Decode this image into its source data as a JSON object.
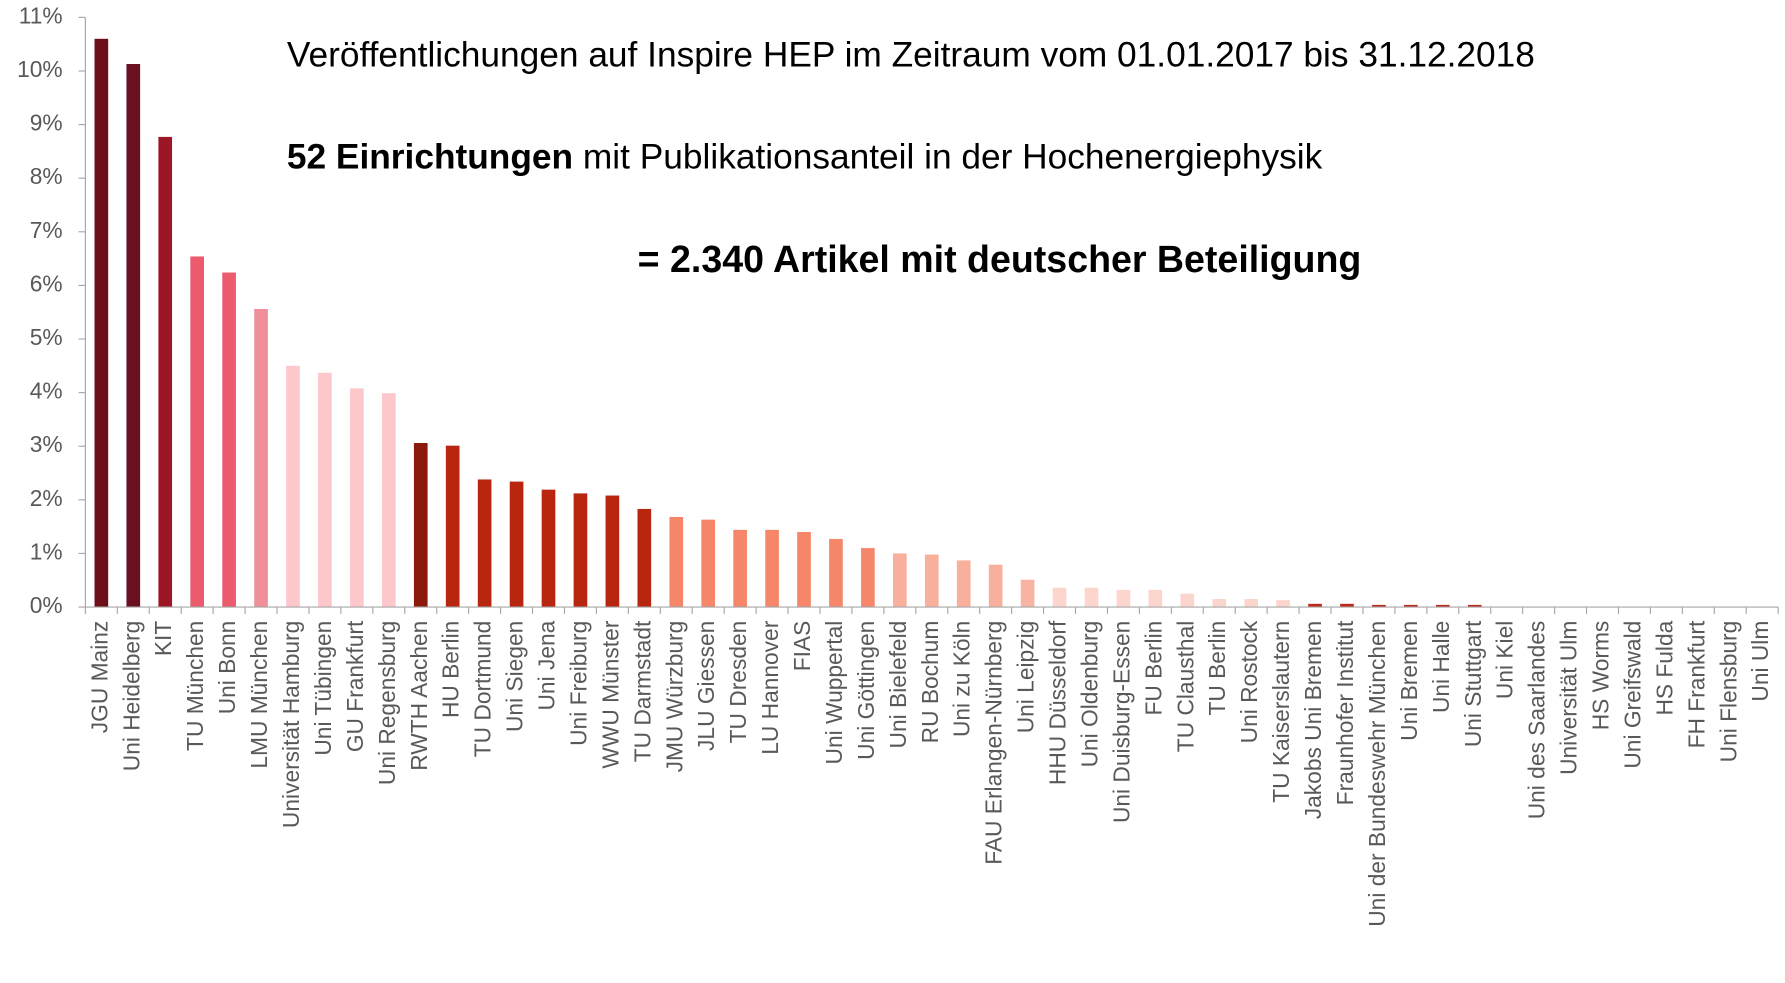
{
  "chart_data": {
    "type": "bar",
    "title": "Veröffentlichungen auf Inspire HEP im Zeitraum vom 01.01.2017 bis 31.12.2018",
    "subtitle_bold": "52 Einrichtungen",
    "subtitle": "mit Publikationsanteil in der Hochenergiephysik",
    "note": "= 2.340 Artikel mit deutscher Beteiligung",
    "categories": [
      "JGU Mainz",
      "Uni Heidelberg",
      "KIT",
      "TU München",
      "Uni Bonn",
      "LMU München",
      "Universität Hamburg",
      "Uni Tübingen",
      "GU Frankfurt",
      "Uni Regensburg",
      "RWTH Aachen",
      "HU Berlin",
      "TU Dortmund",
      "Uni Siegen",
      "Uni Jena",
      "Uni Freiburg",
      "WWU Münster",
      "TU Darmstadt",
      "JMU Würzburg",
      "JLU Giessen",
      "TU Dresden",
      "LU Hannover",
      "FIAS",
      "Uni Wuppertal",
      "Uni Göttingen",
      "Uni Bielefeld",
      "RU Bochum",
      "Uni zu Köln",
      "FAU Erlangen-Nürnberg",
      "Uni Leipzig",
      "HHU Düsseldorf",
      "Uni Oldenburg",
      "Uni Duisburg-Essen",
      "FU Berlin",
      "TU Clausthal",
      "TU Berlin",
      "Uni Rostock",
      "TU Kaiserslautern",
      "Jakobs Uni Bremen",
      "Fraunhofer Institut",
      "Uni der Bundeswehr München",
      "Uni Bremen",
      "Uni Halle",
      "Uni Stuttgart",
      "Uni Kiel",
      "Uni des Saarlandes",
      "Universität Ulm",
      "HS Worms",
      "Uni Greifswald",
      "HS Fulda",
      "FH Frankfurt",
      "Uni Flensburg",
      "Uni Ulm"
    ],
    "values": [
      10.6,
      10.13,
      8.77,
      6.54,
      6.24,
      5.56,
      4.5,
      4.37,
      4.08,
      3.99,
      3.06,
      3.01,
      2.38,
      2.34,
      2.19,
      2.12,
      2.08,
      1.83,
      1.68,
      1.63,
      1.44,
      1.44,
      1.4,
      1.27,
      1.1,
      1.0,
      0.98,
      0.87,
      0.79,
      0.51,
      0.36,
      0.36,
      0.32,
      0.32,
      0.25,
      0.15,
      0.15,
      0.13,
      0.06,
      0.06,
      0.04,
      0.04,
      0.04,
      0.04,
      0,
      0,
      0,
      0,
      0,
      0,
      0,
      0,
      0
    ],
    "colors": [
      "#6e0e1a",
      "#6b1020",
      "#9c1626",
      "#ec5a6e",
      "#ec5a6e",
      "#f08f9a",
      "#fcc8cc",
      "#fcc8cc",
      "#fcc8cc",
      "#fcc8cc",
      "#8b1a0c",
      "#b8260f",
      "#b8260f",
      "#b8260f",
      "#b8260f",
      "#b8260f",
      "#b8260f",
      "#b8260f",
      "#f5866a",
      "#f5866a",
      "#f5866a",
      "#f5866a",
      "#f5866a",
      "#f5866a",
      "#f5866a",
      "#f8b09d",
      "#f8b09d",
      "#f8b09d",
      "#f8b09d",
      "#f8b3a3",
      "#fcd5cc",
      "#fcd5cc",
      "#fcd5cc",
      "#fcd5cc",
      "#fcd5cc",
      "#fcd5cc",
      "#fcd5cc",
      "#fcd5cc",
      "#c0281a",
      "#c0281a",
      "#c0281a",
      "#c0281a",
      "#c0281a",
      "#c0281a",
      "#c0281a",
      "#c0281a",
      "#c0281a",
      "#c0281a",
      "#c0281a",
      "#c0281a",
      "#c0281a",
      "#c0281a",
      "#c0281a"
    ],
    "ylim": [
      0,
      11
    ],
    "yticks": [
      {
        "value": 0,
        "label": "0%"
      },
      {
        "value": 1,
        "label": "1%"
      },
      {
        "value": 2,
        "label": "2%"
      },
      {
        "value": 3,
        "label": "3%"
      },
      {
        "value": 4,
        "label": "4%"
      },
      {
        "value": 5,
        "label": "5%"
      },
      {
        "value": 6,
        "label": "6%"
      },
      {
        "value": 7,
        "label": "7%"
      },
      {
        "value": 8,
        "label": "8%"
      },
      {
        "value": 9,
        "label": "9%"
      },
      {
        "value": 10,
        "label": "10%"
      },
      {
        "value": 11,
        "label": "11%"
      }
    ],
    "grid": false
  }
}
